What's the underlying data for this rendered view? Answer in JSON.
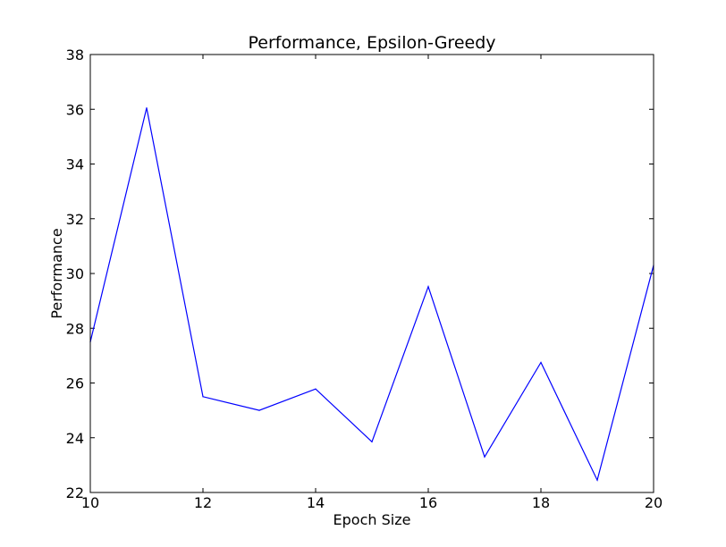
{
  "chart_data": {
    "type": "line",
    "title": "Performance, Epsilon-Greedy",
    "xlabel": "Epoch Size",
    "ylabel": "Performance",
    "xlim": [
      10,
      20
    ],
    "ylim": [
      22,
      38
    ],
    "xticks": [
      10,
      12,
      14,
      16,
      18,
      20
    ],
    "yticks": [
      22,
      24,
      26,
      28,
      30,
      32,
      34,
      36,
      38
    ],
    "grid": false,
    "legend": "none",
    "series": [
      {
        "color": "#0000ff",
        "x": [
          10,
          11,
          12,
          13,
          14,
          15,
          16,
          17,
          18,
          19,
          20
        ],
        "y": [
          27.5,
          36.05,
          25.5,
          25.0,
          25.78,
          23.85,
          29.52,
          23.3,
          26.75,
          22.45,
          30.3
        ]
      }
    ]
  }
}
